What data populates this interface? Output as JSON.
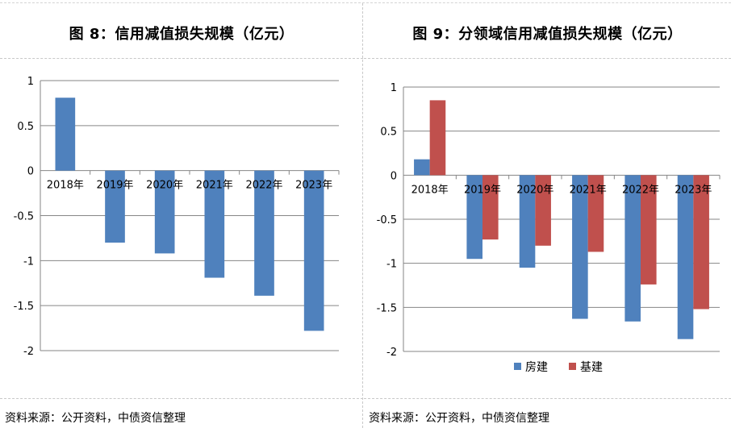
{
  "left": {
    "title": "图 8：信用减值损失规模（亿元）",
    "source": "资料来源：公开资料，中债资信整理"
  },
  "right": {
    "title": "图 9：分领域信用减值损失规模（亿元）",
    "source": "资料来源：公开资料，中债资信整理"
  },
  "chart_data": [
    {
      "type": "bar",
      "title": "图 8：信用减值损失规模（亿元）",
      "categories": [
        "2018年",
        "2019年",
        "2020年",
        "2021年",
        "2022年",
        "2023年"
      ],
      "series": [
        {
          "name": "信用减值损失",
          "color": "#4f81bd",
          "values": [
            0.81,
            -0.8,
            -0.92,
            -1.19,
            -1.39,
            -1.78
          ]
        }
      ],
      "ylim": [
        -2,
        1
      ],
      "yticks": [
        1,
        0.5,
        0,
        -0.5,
        -1,
        -1.5,
        -2
      ],
      "ytick_labels": [
        "1",
        "0.5",
        "0",
        "-0.5",
        "-1",
        "-1.5",
        "-2"
      ],
      "grid": true,
      "legend": "none"
    },
    {
      "type": "bar",
      "title": "图 9：分领域信用减值损失规模（亿元）",
      "categories": [
        "2018年",
        "2019年",
        "2020年",
        "2021年",
        "2022年",
        "2023年"
      ],
      "series": [
        {
          "name": "房建",
          "color": "#4f81bd",
          "values": [
            0.18,
            -0.95,
            -1.05,
            -1.63,
            -1.66,
            -1.86
          ]
        },
        {
          "name": "基建",
          "color": "#c0504d",
          "values": [
            0.85,
            -0.73,
            -0.8,
            -0.87,
            -1.24,
            -1.52
          ]
        }
      ],
      "ylim": [
        -2,
        1
      ],
      "yticks": [
        1,
        0.5,
        0,
        -0.5,
        -1,
        -1.5,
        -2
      ],
      "ytick_labels": [
        "1",
        "0.5",
        "0",
        "-0.5",
        "-1",
        "-1.5",
        "-2"
      ],
      "grid": true,
      "legend": "bottom"
    }
  ]
}
